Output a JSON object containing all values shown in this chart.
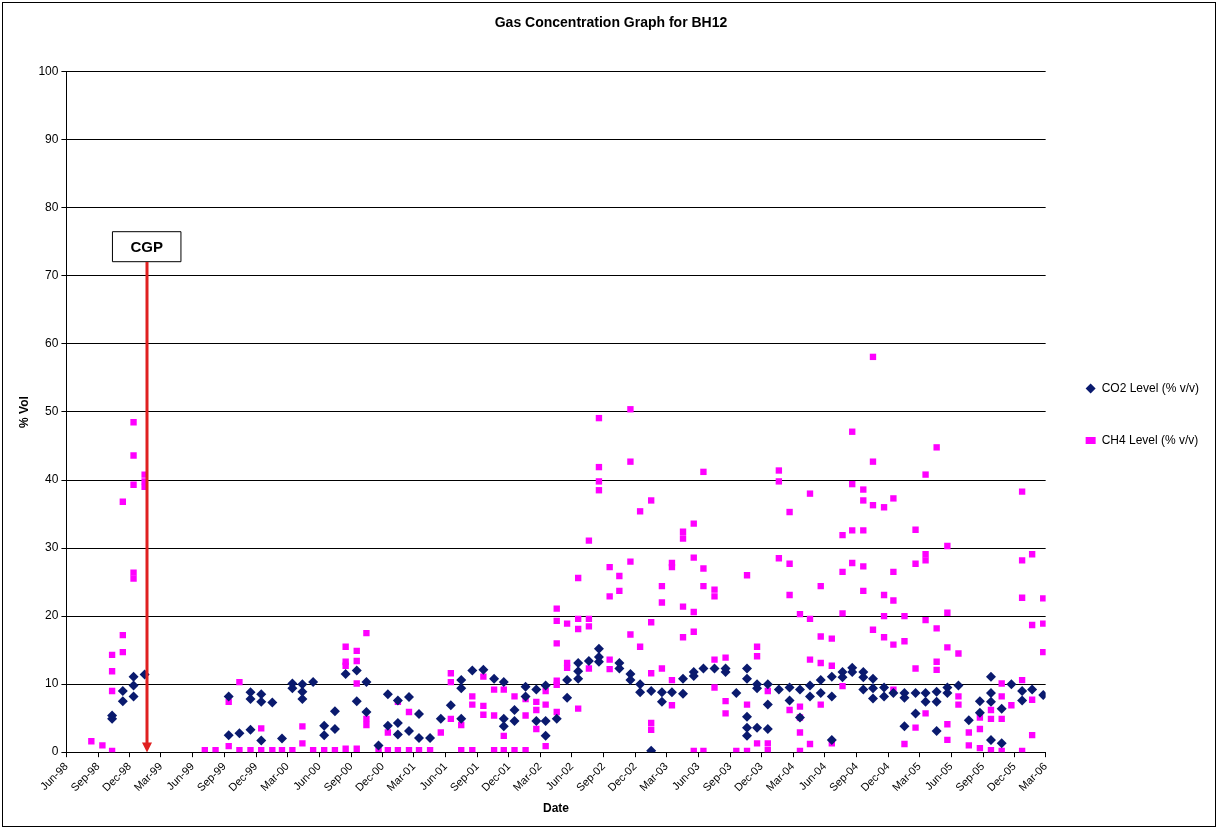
{
  "chart_data": {
    "type": "scatter",
    "title": "Gas Concentration Graph for BH12",
    "xlabel": "Date",
    "ylabel": "% Vol",
    "xlim": [
      "1998-06-01",
      "2006-03-01"
    ],
    "xticks": [
      {
        "value": "1998-06-01",
        "label": "Jun-98"
      },
      {
        "value": "1998-09-01",
        "label": "Sep-98"
      },
      {
        "value": "1998-12-01",
        "label": "Dec-98"
      },
      {
        "value": "1999-03-01",
        "label": "Mar-99"
      },
      {
        "value": "1999-06-01",
        "label": "Jun-99"
      },
      {
        "value": "1999-09-01",
        "label": "Sep-99"
      },
      {
        "value": "1999-12-01",
        "label": "Dec-99"
      },
      {
        "value": "2000-03-01",
        "label": "Mar-00"
      },
      {
        "value": "2000-06-01",
        "label": "Jun-00"
      },
      {
        "value": "2000-09-01",
        "label": "Sep-00"
      },
      {
        "value": "2000-12-01",
        "label": "Dec-00"
      },
      {
        "value": "2001-03-01",
        "label": "Mar-01"
      },
      {
        "value": "2001-06-01",
        "label": "Jun-01"
      },
      {
        "value": "2001-09-01",
        "label": "Sep-01"
      },
      {
        "value": "2001-12-01",
        "label": "Dec-01"
      },
      {
        "value": "2002-03-01",
        "label": "Mar-02"
      },
      {
        "value": "2002-06-01",
        "label": "Jun-02"
      },
      {
        "value": "2002-09-01",
        "label": "Sep-02"
      },
      {
        "value": "2002-12-01",
        "label": "Dec-02"
      },
      {
        "value": "2003-03-01",
        "label": "Mar-03"
      },
      {
        "value": "2003-06-01",
        "label": "Jun-03"
      },
      {
        "value": "2003-09-01",
        "label": "Sep-03"
      },
      {
        "value": "2003-12-01",
        "label": "Dec-03"
      },
      {
        "value": "2004-03-01",
        "label": "Mar-04"
      },
      {
        "value": "2004-06-01",
        "label": "Jun-04"
      },
      {
        "value": "2004-09-01",
        "label": "Sep-04"
      },
      {
        "value": "2004-12-01",
        "label": "Dec-04"
      },
      {
        "value": "2005-03-01",
        "label": "Mar-05"
      },
      {
        "value": "2005-06-01",
        "label": "Jun-05"
      },
      {
        "value": "2005-09-01",
        "label": "Sep-05"
      },
      {
        "value": "2005-12-01",
        "label": "Dec-05"
      },
      {
        "value": "2006-03-01",
        "label": "Mar-06"
      }
    ],
    "ylim": [
      0,
      100
    ],
    "yticks": [
      0,
      10,
      20,
      30,
      40,
      50,
      60,
      70,
      80,
      90,
      100
    ],
    "grid": "y",
    "legend": "right",
    "ref_lines": [
      {
        "axis": "x",
        "value": "1999-01-19",
        "label": "CGP",
        "color": "#e02020"
      }
    ],
    "series": [
      {
        "name": "CO2 Level (% v/v)",
        "color": "#0a1a6e",
        "marker": "diamond",
        "x": [
          "1998-10-11",
          "1998-10-11",
          "1998-11-11",
          "1998-11-11",
          "1998-12-12",
          "1998-12-12",
          "1998-12-12",
          "1999-01-13",
          "1999-09-13",
          "1999-09-13",
          "1999-10-14",
          "1999-11-15",
          "1999-11-15",
          "1999-11-15",
          "1999-12-16",
          "1999-12-16",
          "1999-12-16",
          "2000-01-17",
          "2000-02-14",
          "2000-03-15",
          "2000-03-15",
          "2000-04-13",
          "2000-04-13",
          "2000-04-13",
          "2000-05-14",
          "2000-06-15",
          "2000-06-15",
          "2000-07-16",
          "2000-07-16",
          "2000-08-16",
          "2000-09-17",
          "2000-09-17",
          "2000-10-15",
          "2000-10-15",
          "2000-11-19",
          "2000-12-16",
          "2000-12-16",
          "2001-01-14",
          "2001-01-14",
          "2001-01-14",
          "2001-02-15",
          "2001-02-15",
          "2001-03-16",
          "2001-03-16",
          "2001-04-17",
          "2001-05-18",
          "2001-06-16",
          "2001-07-16",
          "2001-07-16",
          "2001-07-16",
          "2001-08-17",
          "2001-09-18",
          "2001-10-19",
          "2001-11-16",
          "2001-11-16",
          "2001-11-16",
          "2001-12-17",
          "2001-12-17",
          "2002-01-18",
          "2002-01-18",
          "2002-02-18",
          "2002-02-18",
          "2002-03-17",
          "2002-03-17",
          "2002-03-17",
          "2002-04-18",
          "2002-05-18",
          "2002-05-18",
          "2002-06-19",
          "2002-06-19",
          "2002-06-19",
          "2002-07-20",
          "2002-08-18",
          "2002-08-18",
          "2002-08-18",
          "2002-10-16",
          "2002-10-16",
          "2002-11-17",
          "2002-11-17",
          "2002-12-15",
          "2002-12-15",
          "2003-01-16",
          "2003-01-16",
          "2003-02-16",
          "2003-02-16",
          "2003-03-17",
          "2003-04-18",
          "2003-04-18",
          "2003-05-19",
          "2003-05-19",
          "2003-06-16",
          "2003-07-18",
          "2003-08-19",
          "2003-08-19",
          "2003-09-19",
          "2003-10-20",
          "2003-10-20",
          "2003-10-20",
          "2003-10-20",
          "2003-10-20",
          "2003-11-18",
          "2003-11-18",
          "2003-11-18",
          "2003-12-19",
          "2003-12-19",
          "2003-12-19",
          "2004-01-20",
          "2004-02-20",
          "2004-02-20",
          "2004-03-21",
          "2004-03-21",
          "2004-04-19",
          "2004-04-19",
          "2004-05-20",
          "2004-05-20",
          "2004-06-21",
          "2004-06-21",
          "2004-06-21",
          "2004-07-22",
          "2004-07-22",
          "2004-08-19",
          "2004-08-19",
          "2004-09-20",
          "2004-09-20",
          "2004-09-20",
          "2004-10-18",
          "2004-10-18",
          "2004-10-18",
          "2004-11-19",
          "2004-11-19",
          "2004-12-16",
          "2005-01-17",
          "2005-01-17",
          "2005-01-17",
          "2005-02-18",
          "2005-02-18",
          "2005-03-19",
          "2005-03-19",
          "2005-04-20",
          "2005-04-20",
          "2005-04-20",
          "2005-05-21",
          "2005-05-21",
          "2005-06-22",
          "2005-07-22",
          "2005-08-23",
          "2005-08-23",
          "2005-09-24",
          "2005-09-24",
          "2005-09-24",
          "2005-09-24",
          "2005-10-25",
          "2005-10-25",
          "2005-11-22",
          "2005-12-23",
          "2005-12-23",
          "2006-01-21",
          "2006-02-22"
        ],
        "values": [
          5.4,
          4.9,
          9.0,
          7.5,
          11.1,
          9.8,
          8.2,
          11.4,
          8.2,
          2.5,
          2.8,
          8.8,
          7.8,
          3.3,
          8.5,
          7.4,
          1.7,
          7.3,
          2.0,
          10.1,
          9.4,
          10.0,
          8.9,
          7.8,
          10.3,
          3.9,
          2.5,
          6.0,
          3.4,
          11.5,
          12.0,
          7.5,
          10.3,
          5.9,
          1.0,
          8.5,
          3.9,
          7.6,
          4.3,
          2.6,
          8.1,
          3.1,
          5.6,
          2.1,
          2.1,
          4.9,
          6.9,
          10.6,
          9.4,
          4.9,
          12.0,
          12.1,
          10.8,
          10.3,
          4.9,
          3.8,
          6.2,
          4.6,
          9.6,
          8.2,
          9.2,
          4.6,
          9.8,
          4.6,
          2.4,
          4.9,
          10.6,
          8.0,
          13.1,
          11.9,
          10.8,
          13.4,
          15.2,
          14.0,
          13.3,
          13.1,
          12.3,
          11.5,
          10.6,
          10.0,
          8.8,
          9.0,
          0.2,
          8.8,
          7.4,
          8.8,
          10.8,
          8.6,
          11.8,
          11.2,
          12.3,
          12.3,
          12.3,
          11.8,
          8.7,
          12.3,
          10.8,
          5.2,
          3.6,
          2.4,
          10.0,
          9.4,
          3.6,
          10.0,
          7.0,
          3.4,
          9.2,
          9.5,
          7.6,
          9.2,
          5.1,
          9.8,
          8.2,
          10.6,
          8.7,
          11.1,
          8.2,
          1.8,
          11.8,
          11.0,
          12.4,
          11.8,
          11.8,
          11.0,
          9.2,
          10.8,
          9.4,
          7.9,
          9.5,
          8.2,
          8.7,
          8.7,
          8.0,
          3.8,
          8.7,
          5.7,
          8.7,
          7.4,
          8.9,
          7.4,
          3.1,
          9.5,
          8.7,
          9.8,
          4.7,
          7.5,
          5.8,
          11.1,
          8.7,
          7.4,
          1.8,
          6.4,
          1.3,
          10.0,
          9.0,
          7.6,
          9.2,
          8.4
        ]
      },
      {
        "name": "CH4 Level (% v/v)",
        "color": "#ff00ff",
        "marker": "square",
        "x": [
          "1998-08-12",
          "1998-09-13",
          "1998-10-11",
          "1998-10-11",
          "1998-10-11",
          "1998-10-11",
          "1998-11-11",
          "1998-11-11",
          "1998-11-11",
          "1998-12-12",
          "1998-12-12",
          "1998-12-12",
          "1998-12-12",
          "1998-12-12",
          "1999-01-13",
          "1999-01-13",
          "1999-01-13",
          "1999-07-06",
          "1999-08-06",
          "1999-09-13",
          "1999-09-13",
          "1999-10-14",
          "1999-10-14",
          "1999-11-15",
          "1999-12-16",
          "1999-12-16",
          "2000-01-17",
          "2000-02-14",
          "2000-03-15",
          "2000-04-13",
          "2000-04-13",
          "2000-05-14",
          "2000-06-15",
          "2000-07-16",
          "2000-08-16",
          "2000-08-16",
          "2000-08-16",
          "2000-08-16",
          "2000-09-17",
          "2000-09-17",
          "2000-09-17",
          "2000-09-17",
          "2000-10-15",
          "2000-10-15",
          "2000-10-15",
          "2000-11-19",
          "2000-12-16",
          "2000-12-16",
          "2001-01-14",
          "2001-01-14",
          "2001-02-15",
          "2001-02-15",
          "2001-03-16",
          "2001-04-17",
          "2001-05-18",
          "2001-06-16",
          "2001-06-16",
          "2001-06-16",
          "2001-07-16",
          "2001-07-16",
          "2001-08-17",
          "2001-08-17",
          "2001-08-17",
          "2001-09-18",
          "2001-09-18",
          "2001-09-18",
          "2001-10-19",
          "2001-10-19",
          "2001-10-19",
          "2001-11-16",
          "2001-11-16",
          "2001-11-16",
          "2001-12-17",
          "2001-12-17",
          "2002-01-18",
          "2002-01-18",
          "2002-01-18",
          "2002-02-18",
          "2002-02-18",
          "2002-02-18",
          "2002-03-17",
          "2002-03-17",
          "2002-03-17",
          "2002-04-18",
          "2002-04-18",
          "2002-04-18",
          "2002-04-18",
          "2002-04-18",
          "2002-04-18",
          "2002-05-18",
          "2002-05-18",
          "2002-05-18",
          "2002-06-19",
          "2002-06-19",
          "2002-06-19",
          "2002-06-19",
          "2002-07-20",
          "2002-07-20",
          "2002-07-20",
          "2002-07-20",
          "2002-08-18",
          "2002-08-18",
          "2002-08-18",
          "2002-08-18",
          "2002-09-18",
          "2002-09-18",
          "2002-09-18",
          "2002-09-18",
          "2002-10-16",
          "2002-10-16",
          "2002-11-17",
          "2002-11-17",
          "2002-11-17",
          "2002-11-17",
          "2002-12-15",
          "2002-12-15",
          "2003-01-16",
          "2003-01-16",
          "2003-01-16",
          "2003-01-16",
          "2003-01-16",
          "2003-02-16",
          "2003-02-16",
          "2003-02-16",
          "2003-03-17",
          "2003-03-17",
          "2003-03-17",
          "2003-03-17",
          "2003-04-18",
          "2003-04-18",
          "2003-04-18",
          "2003-04-18",
          "2003-05-19",
          "2003-05-19",
          "2003-05-19",
          "2003-05-19",
          "2003-05-19",
          "2003-06-16",
          "2003-06-16",
          "2003-06-16",
          "2003-06-16",
          "2003-07-18",
          "2003-07-18",
          "2003-07-18",
          "2003-07-18",
          "2003-08-19",
          "2003-08-19",
          "2003-08-19",
          "2003-09-19",
          "2003-10-20",
          "2003-10-20",
          "2003-10-20",
          "2003-11-18",
          "2003-11-18",
          "2003-11-18",
          "2003-12-19",
          "2003-12-19",
          "2003-12-19",
          "2004-01-20",
          "2004-01-20",
          "2004-01-20",
          "2004-02-20",
          "2004-02-20",
          "2004-02-20",
          "2004-02-20",
          "2004-03-21",
          "2004-03-21",
          "2004-03-21",
          "2004-03-21",
          "2004-03-21",
          "2004-04-19",
          "2004-04-19",
          "2004-04-19",
          "2004-04-19",
          "2004-05-20",
          "2004-05-20",
          "2004-05-20",
          "2004-05-20",
          "2004-06-21",
          "2004-06-21",
          "2004-06-21",
          "2004-07-22",
          "2004-07-22",
          "2004-07-22",
          "2004-07-22",
          "2004-08-19",
          "2004-08-19",
          "2004-08-19",
          "2004-08-19",
          "2004-09-20",
          "2004-09-20",
          "2004-09-20",
          "2004-09-20",
          "2004-09-20",
          "2004-10-18",
          "2004-10-18",
          "2004-10-18",
          "2004-10-18",
          "2004-11-19",
          "2004-11-19",
          "2004-11-19",
          "2004-11-19",
          "2004-12-16",
          "2004-12-16",
          "2004-12-16",
          "2004-12-16",
          "2004-12-16",
          "2005-01-17",
          "2005-01-17",
          "2005-01-17",
          "2005-02-18",
          "2005-02-18",
          "2005-02-18",
          "2005-02-18",
          "2005-03-19",
          "2005-03-19",
          "2005-03-19",
          "2005-03-19",
          "2005-03-19",
          "2005-04-20",
          "2005-04-20",
          "2005-04-20",
          "2005-04-20",
          "2005-05-21",
          "2005-05-21",
          "2005-05-21",
          "2005-05-21",
          "2005-05-21",
          "2005-06-22",
          "2005-06-22",
          "2005-06-22",
          "2005-07-22",
          "2005-07-22",
          "2005-08-23",
          "2005-08-23",
          "2005-08-23",
          "2005-09-24",
          "2005-09-24",
          "2005-09-24",
          "2005-10-25",
          "2005-10-25",
          "2005-10-25",
          "2005-10-25",
          "2005-11-22",
          "2005-12-23",
          "2005-12-23",
          "2005-12-23",
          "2005-12-23",
          "2005-12-23",
          "2006-01-21",
          "2006-01-21",
          "2006-01-21",
          "2006-01-21",
          "2006-02-22",
          "2006-02-22",
          "2006-02-22"
        ],
        "values": [
          1.6,
          1.0,
          0.2,
          14.3,
          11.9,
          9.0,
          36.8,
          17.2,
          14.7,
          48.5,
          43.6,
          39.3,
          26.4,
          25.5,
          40.8,
          39.8,
          39.0,
          0.3,
          0.3,
          7.4,
          0.9,
          10.3,
          0.3,
          0.3,
          3.5,
          0.3,
          0.3,
          0.3,
          0.3,
          3.8,
          1.3,
          0.3,
          0.3,
          0.3,
          15.5,
          13.3,
          12.7,
          0.5,
          14.9,
          13.4,
          10.1,
          0.5,
          17.5,
          4.9,
          4.0,
          0.5,
          2.9,
          0.3,
          7.4,
          0.3,
          5.9,
          0.3,
          0.3,
          0.3,
          2.9,
          11.6,
          10.3,
          4.9,
          4.0,
          0.3,
          8.2,
          7.0,
          0.3,
          11.1,
          6.8,
          5.5,
          9.2,
          5.4,
          0.3,
          9.2,
          2.4,
          0.3,
          8.2,
          0.3,
          7.8,
          5.4,
          0.3,
          7.4,
          6.2,
          3.4,
          9.0,
          7.0,
          0.9,
          21.1,
          19.3,
          16.0,
          10.5,
          9.9,
          5.9,
          18.9,
          13.1,
          12.4,
          25.6,
          19.6,
          18.1,
          6.4,
          31.1,
          19.6,
          18.5,
          12.3,
          49.1,
          41.9,
          39.8,
          38.5,
          27.2,
          22.9,
          13.6,
          12.2,
          25.9,
          23.7,
          50.4,
          42.7,
          28.0,
          17.3,
          35.4,
          15.5,
          37.0,
          19.1,
          11.6,
          4.3,
          3.3,
          24.4,
          22.0,
          12.3,
          27.8,
          27.2,
          10.6,
          6.9,
          32.4,
          31.4,
          21.4,
          16.9,
          33.6,
          28.6,
          20.6,
          17.7,
          0.2,
          41.2,
          27.0,
          24.4,
          0.2,
          23.9,
          22.9,
          13.6,
          9.5,
          13.9,
          7.5,
          5.7,
          0.2,
          26.0,
          7.0,
          0.2,
          15.5,
          14.1,
          1.3,
          9.0,
          1.3,
          0.3,
          41.4,
          39.8,
          28.5,
          35.3,
          27.7,
          23.1,
          6.2,
          20.3,
          6.7,
          5.1,
          2.9,
          0.2,
          38.0,
          19.6,
          13.6,
          1.2,
          24.4,
          17.0,
          13.1,
          7.0,
          16.7,
          12.7,
          1.3,
          31.9,
          26.5,
          20.4,
          9.7,
          47.1,
          39.4,
          32.6,
          27.8,
          38.6,
          37.0,
          32.6,
          27.3,
          23.7,
          58.1,
          42.7,
          36.3,
          18.0,
          36.0,
          23.1,
          20.0,
          16.9,
          37.3,
          26.5,
          22.3,
          15.8,
          9.2,
          20.0,
          16.3,
          1.2,
          32.7,
          27.7,
          12.3,
          3.6,
          40.8,
          29.1,
          28.2,
          19.4,
          5.7,
          44.8,
          18.2,
          13.3,
          12.1,
          30.3,
          20.5,
          15.4,
          4.1,
          1.8,
          14.5,
          8.2,
          7.0,
          2.9,
          1.0,
          5.1,
          3.4,
          0.6,
          6.2,
          4.9,
          0.3,
          10.1,
          8.2,
          4.9,
          0.2,
          6.9,
          38.3,
          28.2,
          22.7,
          10.6,
          0.2,
          29.1,
          18.7,
          7.7,
          2.5,
          22.6,
          18.9,
          14.7
        ]
      }
    ]
  }
}
